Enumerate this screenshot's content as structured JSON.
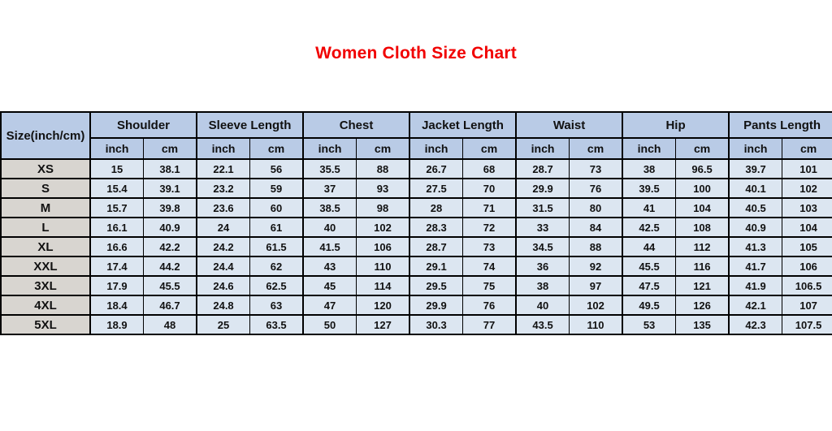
{
  "title": "Women Cloth Size Chart",
  "colors": {
    "title_red": "#f10000",
    "header_bg": "#b9cbe6",
    "size_column_bg": "#d8d5d0",
    "data_cell_bg": "#dce6f1",
    "border": "#000000"
  },
  "chart_data": {
    "type": "table",
    "title": "Women Cloth Size Chart",
    "corner_header": "Size(inch/cm)",
    "groups": [
      "Shoulder",
      "Sleeve Length",
      "Chest",
      "Jacket Length",
      "Waist",
      "Hip",
      "Pants Length"
    ],
    "unit_headers": [
      "inch",
      "cm"
    ],
    "rows": [
      {
        "size": "XS",
        "values": [
          "15",
          "38.1",
          "22.1",
          "56",
          "35.5",
          "88",
          "26.7",
          "68",
          "28.7",
          "73",
          "38",
          "96.5",
          "39.7",
          "101"
        ]
      },
      {
        "size": "S",
        "values": [
          "15.4",
          "39.1",
          "23.2",
          "59",
          "37",
          "93",
          "27.5",
          "70",
          "29.9",
          "76",
          "39.5",
          "100",
          "40.1",
          "102"
        ]
      },
      {
        "size": "M",
        "values": [
          "15.7",
          "39.8",
          "23.6",
          "60",
          "38.5",
          "98",
          "28",
          "71",
          "31.5",
          "80",
          "41",
          "104",
          "40.5",
          "103"
        ]
      },
      {
        "size": "L",
        "values": [
          "16.1",
          "40.9",
          "24",
          "61",
          "40",
          "102",
          "28.3",
          "72",
          "33",
          "84",
          "42.5",
          "108",
          "40.9",
          "104"
        ]
      },
      {
        "size": "XL",
        "values": [
          "16.6",
          "42.2",
          "24.2",
          "61.5",
          "41.5",
          "106",
          "28.7",
          "73",
          "34.5",
          "88",
          "44",
          "112",
          "41.3",
          "105"
        ]
      },
      {
        "size": "XXL",
        "values": [
          "17.4",
          "44.2",
          "24.4",
          "62",
          "43",
          "110",
          "29.1",
          "74",
          "36",
          "92",
          "45.5",
          "116",
          "41.7",
          "106"
        ]
      },
      {
        "size": "3XL",
        "values": [
          "17.9",
          "45.5",
          "24.6",
          "62.5",
          "45",
          "114",
          "29.5",
          "75",
          "38",
          "97",
          "47.5",
          "121",
          "41.9",
          "106.5"
        ]
      },
      {
        "size": "4XL",
        "values": [
          "18.4",
          "46.7",
          "24.8",
          "63",
          "47",
          "120",
          "29.9",
          "76",
          "40",
          "102",
          "49.5",
          "126",
          "42.1",
          "107"
        ]
      },
      {
        "size": "5XL",
        "values": [
          "18.9",
          "48",
          "25",
          "63.5",
          "50",
          "127",
          "30.3",
          "77",
          "43.5",
          "110",
          "53",
          "135",
          "42.3",
          "107.5"
        ]
      }
    ]
  }
}
